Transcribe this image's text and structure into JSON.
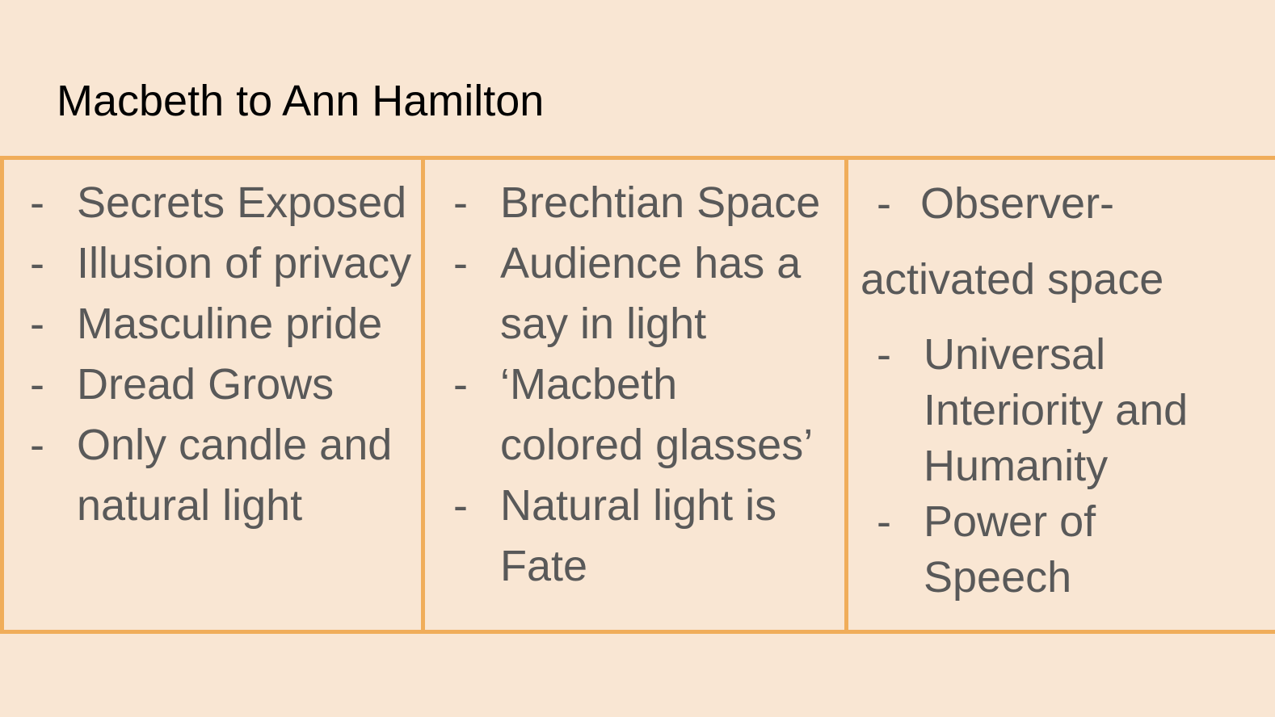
{
  "slide": {
    "title": "Macbeth to Ann Hamilton",
    "colors": {
      "background": "#f9e6d3",
      "border": "#f0ad5a",
      "body_text": "#595959",
      "title_text": "#000000"
    },
    "bullet_marker": "-",
    "columns": [
      {
        "items": [
          "Secrets Exposed",
          "Illusion of privacy",
          "Masculine pride",
          "Dread Grows",
          "Only candle and natural light"
        ]
      },
      {
        "items": [
          "Brechtian Space",
          "Audience has a say in light",
          "‘Macbeth colored glasses’",
          "Natural light is Fate"
        ]
      },
      {
        "lead_item_line1": "Observer-",
        "lead_item_line2": "activated space",
        "items": [
          "Universal Interiority and Humanity",
          "Power of Speech"
        ]
      }
    ]
  }
}
